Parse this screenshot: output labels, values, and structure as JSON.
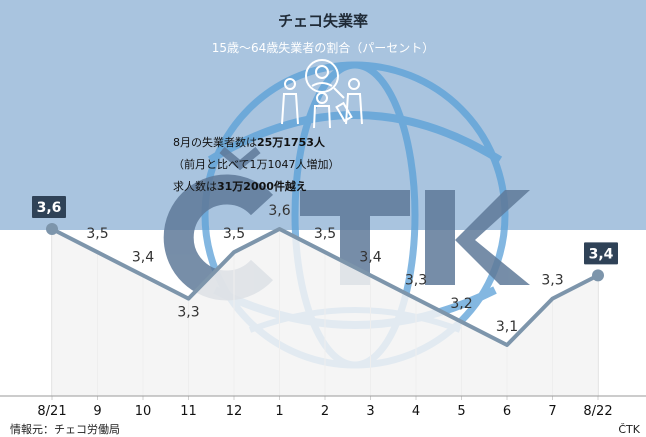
{
  "chart_data": {
    "type": "area",
    "title": "チェコ失業率",
    "subtitle": "15歳〜64歳失業者の割合（パーセント）",
    "categories": [
      "8/21",
      "9",
      "10",
      "11",
      "12",
      "1",
      "2",
      "3",
      "4",
      "5",
      "6",
      "7",
      "8/22"
    ],
    "values": [
      3.6,
      3.5,
      3.4,
      3.3,
      3.5,
      3.6,
      3.5,
      3.4,
      3.3,
      3.2,
      3.1,
      3.3,
      3.4
    ],
    "value_labels": [
      "3,6",
      "3,5",
      "3,4",
      "3,3",
      "3,5",
      "3,6",
      "3,5",
      "3,4",
      "3,3",
      "3,2",
      "3,1",
      "3,3",
      "3,4"
    ],
    "grid": "vertical",
    "ylim": [
      3.0,
      3.8
    ]
  },
  "annotations": {
    "line1_prefix": "8月の失業者数は",
    "line1_value": "25万1753人",
    "line2": "（前月と比べて1万1047人増加）",
    "line3_prefix": "求人数は",
    "line3_value": "31万2000件越え"
  },
  "footer": {
    "source": "情報元：チェコ労働局",
    "agency": "ČTK"
  },
  "colors": {
    "header_bg": "#a9c4df",
    "line": "#7d95ab",
    "badge": "#2f4257",
    "globe": "#5aa0d8",
    "logo_text": "#5f7a99",
    "fill": "#f3f3f3",
    "grid": "#cfcfcf"
  }
}
